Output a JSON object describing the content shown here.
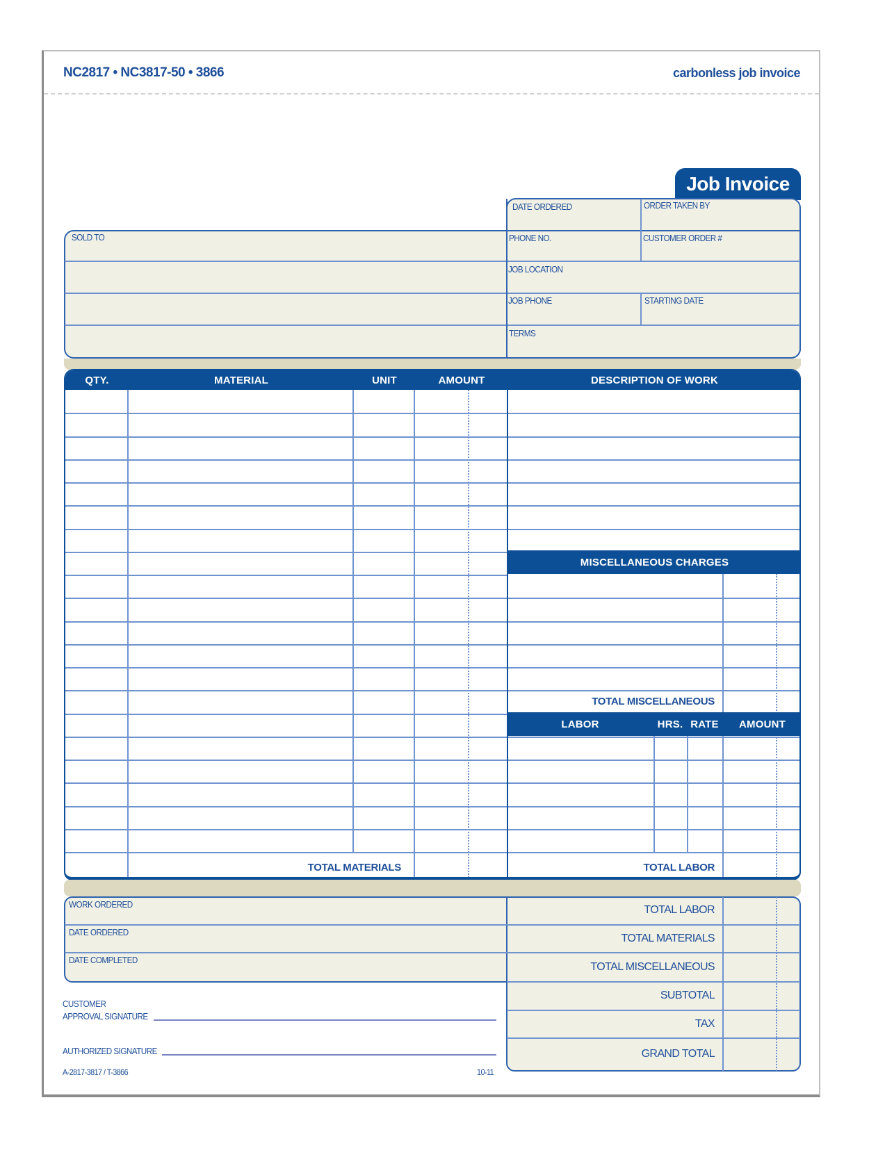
{
  "header": {
    "form_numbers": "NC2817 • NC3817-50 • 3866",
    "product_name": "carbonless job invoice"
  },
  "title": "Job Invoice",
  "order_info": {
    "date_ordered": "DATE ORDERED",
    "order_taken_by": "ORDER TAKEN BY",
    "sold_to": "SOLD TO",
    "phone_no": "PHONE NO.",
    "customer_order": "CUSTOMER ORDER #",
    "job_location": "JOB LOCATION",
    "job_phone": "JOB PHONE",
    "starting_date": "STARTING DATE",
    "terms": "TERMS"
  },
  "materials_table": {
    "columns": [
      "QTY.",
      "MATERIAL",
      "UNIT",
      "AMOUNT"
    ],
    "total_label": "TOTAL MATERIALS"
  },
  "description": {
    "header": "DESCRIPTION OF WORK"
  },
  "misc": {
    "header": "MISCELLANEOUS CHARGES",
    "total_label": "TOTAL MISCELLANEOUS"
  },
  "labor_table": {
    "columns": [
      "LABOR",
      "HRS.",
      "RATE",
      "AMOUNT"
    ],
    "total_label": "TOTAL LABOR"
  },
  "completion": {
    "work_ordered": "WORK ORDERED",
    "date_ordered": "DATE ORDERED",
    "date_completed": "DATE COMPLETED"
  },
  "summary": [
    "TOTAL LABOR",
    "TOTAL MATERIALS",
    "TOTAL MISCELLANEOUS",
    "SUBTOTAL",
    "TAX",
    "GRAND TOTAL"
  ],
  "signatures": {
    "customer_line1": "CUSTOMER",
    "customer_line2": "APPROVAL SIGNATURE",
    "authorized": "AUTHORIZED SIGNATURE"
  },
  "footer": {
    "code": "A-2817-3817 / T-3866",
    "revision": "10-11"
  },
  "colors": {
    "brand_blue": "#0c4f96",
    "field_tan": "#f1f0e5",
    "strip_tan": "#dcd9c0"
  }
}
